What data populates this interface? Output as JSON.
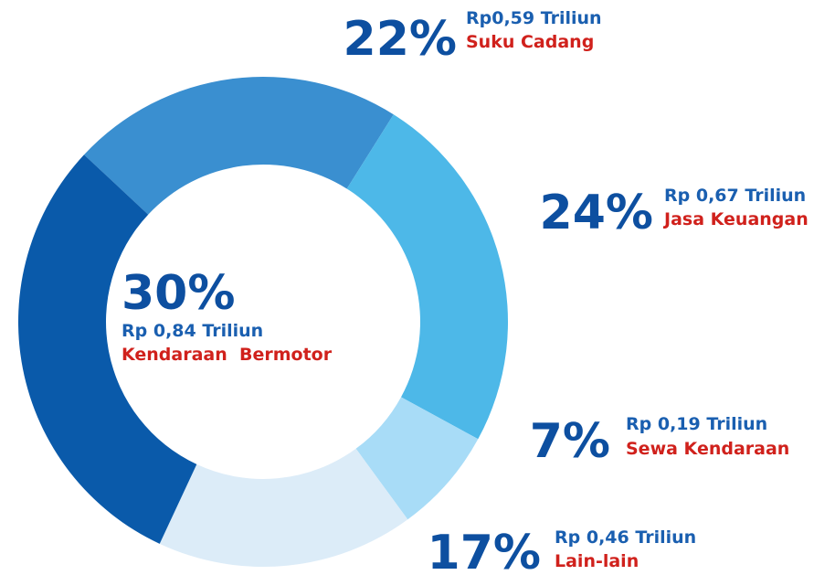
{
  "chart_data": {
    "type": "donut",
    "categories": [
      "Suku Cadang",
      "Jasa Keuangan",
      "Sewa Kendaraan",
      "Lain-lain",
      "Kendaraan  Bermotor"
    ],
    "values": [
      22,
      24,
      7,
      17,
      30
    ],
    "value_labels": [
      "22%",
      "24%",
      "7%",
      "17%",
      "30%"
    ],
    "amounts": [
      "Rp0,59 Triliun",
      "Rp 0,67 Triliun",
      "Rp 0,19 Triliun",
      "Rp 0,46 Triliun",
      "Rp 0,84 Triliun"
    ],
    "colors": [
      "#3a8fd0",
      "#4db8e8",
      "#a8dcf7",
      "#dcecf8",
      "#0a5aaa"
    ]
  }
}
